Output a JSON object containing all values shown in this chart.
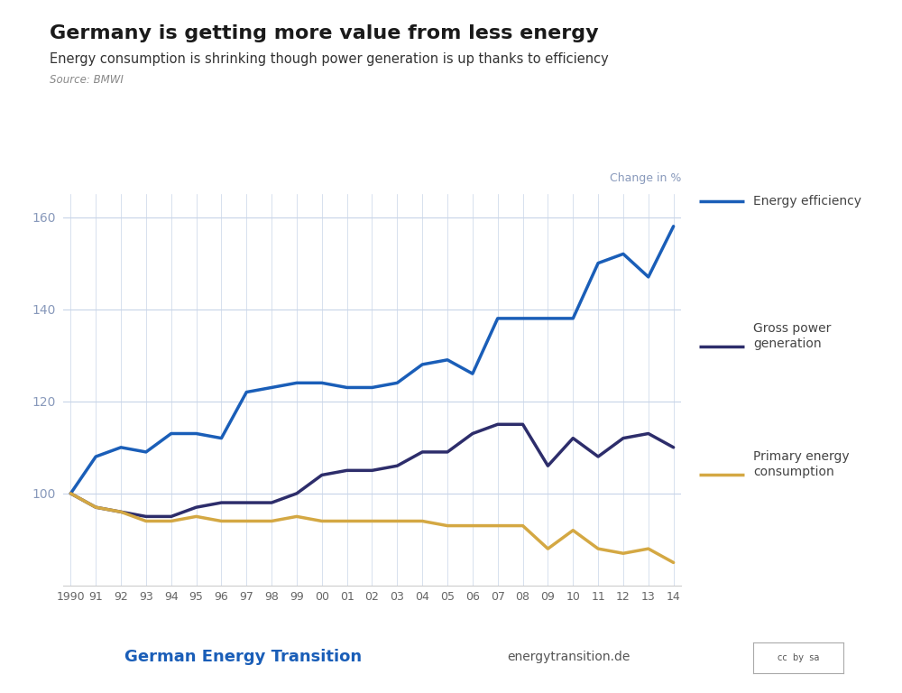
{
  "title": "Germany is getting more value from less energy",
  "subtitle": "Energy consumption is shrinking though power generation is up thanks to efficiency",
  "source": "Source: BMWI",
  "ylabel": "Change in %",
  "years": [
    1990,
    1991,
    1992,
    1993,
    1994,
    1995,
    1996,
    1997,
    1998,
    1999,
    2000,
    2001,
    2002,
    2003,
    2004,
    2005,
    2006,
    2007,
    2008,
    2009,
    2010,
    2011,
    2012,
    2013,
    2014
  ],
  "year_labels": [
    "1990",
    "91",
    "92",
    "93",
    "94",
    "95",
    "96",
    "97",
    "98",
    "99",
    "00",
    "01",
    "02",
    "03",
    "04",
    "05",
    "06",
    "07",
    "08",
    "09",
    "10",
    "11",
    "12",
    "13",
    "14"
  ],
  "energy_efficiency": [
    100,
    108,
    110,
    109,
    113,
    113,
    112,
    122,
    123,
    124,
    124,
    123,
    123,
    124,
    128,
    129,
    126,
    138,
    138,
    138,
    138,
    150,
    152,
    147,
    158
  ],
  "gross_power_generation": [
    100,
    97,
    96,
    95,
    95,
    97,
    98,
    98,
    98,
    100,
    104,
    105,
    105,
    106,
    109,
    109,
    113,
    115,
    115,
    106,
    112,
    108,
    112,
    113,
    110
  ],
  "primary_energy_consumption": [
    100,
    97,
    96,
    94,
    94,
    95,
    94,
    94,
    94,
    95,
    94,
    94,
    94,
    94,
    94,
    93,
    93,
    93,
    93,
    88,
    92,
    88,
    87,
    88,
    85
  ],
  "efficiency_color": "#1a5eb8",
  "power_color": "#2d2d6b",
  "consumption_color": "#d4a843",
  "grid_color": "#c8d4e8",
  "axis_label_color": "#8899bb",
  "title_color": "#1a1a1a",
  "subtitle_color": "#333333",
  "source_color": "#888888",
  "background_color": "#ffffff",
  "footer_brand": "German Energy Transition",
  "footer_brand_color": "#1a5eb8",
  "footer_site": "energytransition.de",
  "footer_site_color": "#555555",
  "ylim_min": 80,
  "ylim_max": 165,
  "yticks": [
    100,
    120,
    140,
    160
  ],
  "line_width": 2.5,
  "legend_line_label_color": "#444444"
}
